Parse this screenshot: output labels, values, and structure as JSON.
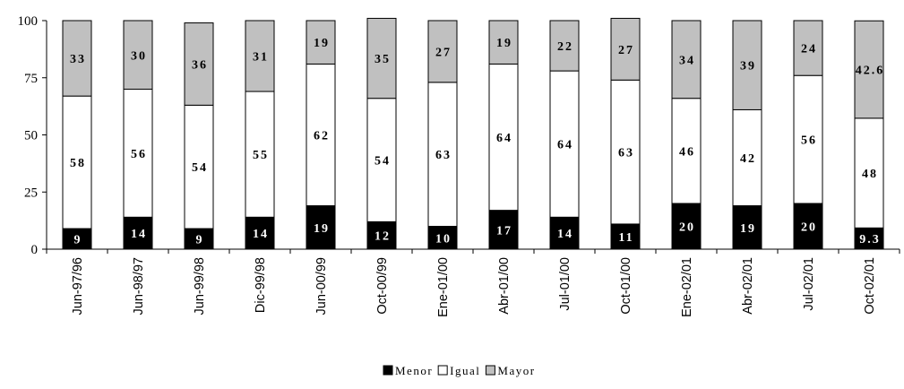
{
  "chart_data": {
    "type": "bar",
    "stacked": true,
    "categories": [
      "Jun-97/96",
      "Jun-98/97",
      "Jun-99/98",
      "Dic-99/98",
      "Jun-00/99",
      "Oct-00/99",
      "Ene-01/00",
      "Abr-01/00",
      "Jul-01/00",
      "Oct-01/00",
      "Ene-02/01",
      "Abr-02/01",
      "Jul-02/01",
      "Oct-02/01"
    ],
    "series": [
      {
        "name": "Menor",
        "color": "#000000",
        "label_color": "#ffffff",
        "values": [
          9,
          14,
          9,
          14,
          19,
          12,
          10,
          17,
          14,
          11,
          20,
          19,
          20,
          9.3
        ],
        "labels": [
          "9",
          "14",
          "9",
          "14",
          "19",
          "12",
          "10",
          "17",
          "14",
          "11",
          "20",
          "19",
          "20",
          "9.3"
        ]
      },
      {
        "name": "Igual",
        "color": "#ffffff",
        "label_color": "#000000",
        "values": [
          58,
          56,
          54,
          55,
          62,
          54,
          63,
          64,
          64,
          63,
          46,
          42,
          56,
          48
        ],
        "labels": [
          "58",
          "56",
          "54",
          "55",
          "62",
          "54",
          "63",
          "64",
          "64",
          "63",
          "46",
          "42",
          "56",
          "48"
        ]
      },
      {
        "name": "Mayor",
        "color": "#c0c0c0",
        "label_color": "#000000",
        "values": [
          33,
          30,
          36,
          31,
          19,
          35,
          27,
          19,
          22,
          27,
          34,
          39,
          24,
          42.6
        ],
        "labels": [
          "33",
          "30",
          "36",
          "31",
          "19",
          "35",
          "27",
          "19",
          "22",
          "27",
          "34",
          "39",
          "24",
          "42.6"
        ]
      }
    ],
    "ylim": [
      0,
      100
    ],
    "yticks": [
      "0",
      "25",
      "50",
      "75",
      "100"
    ],
    "legend_position": "bottom",
    "grid": false
  }
}
